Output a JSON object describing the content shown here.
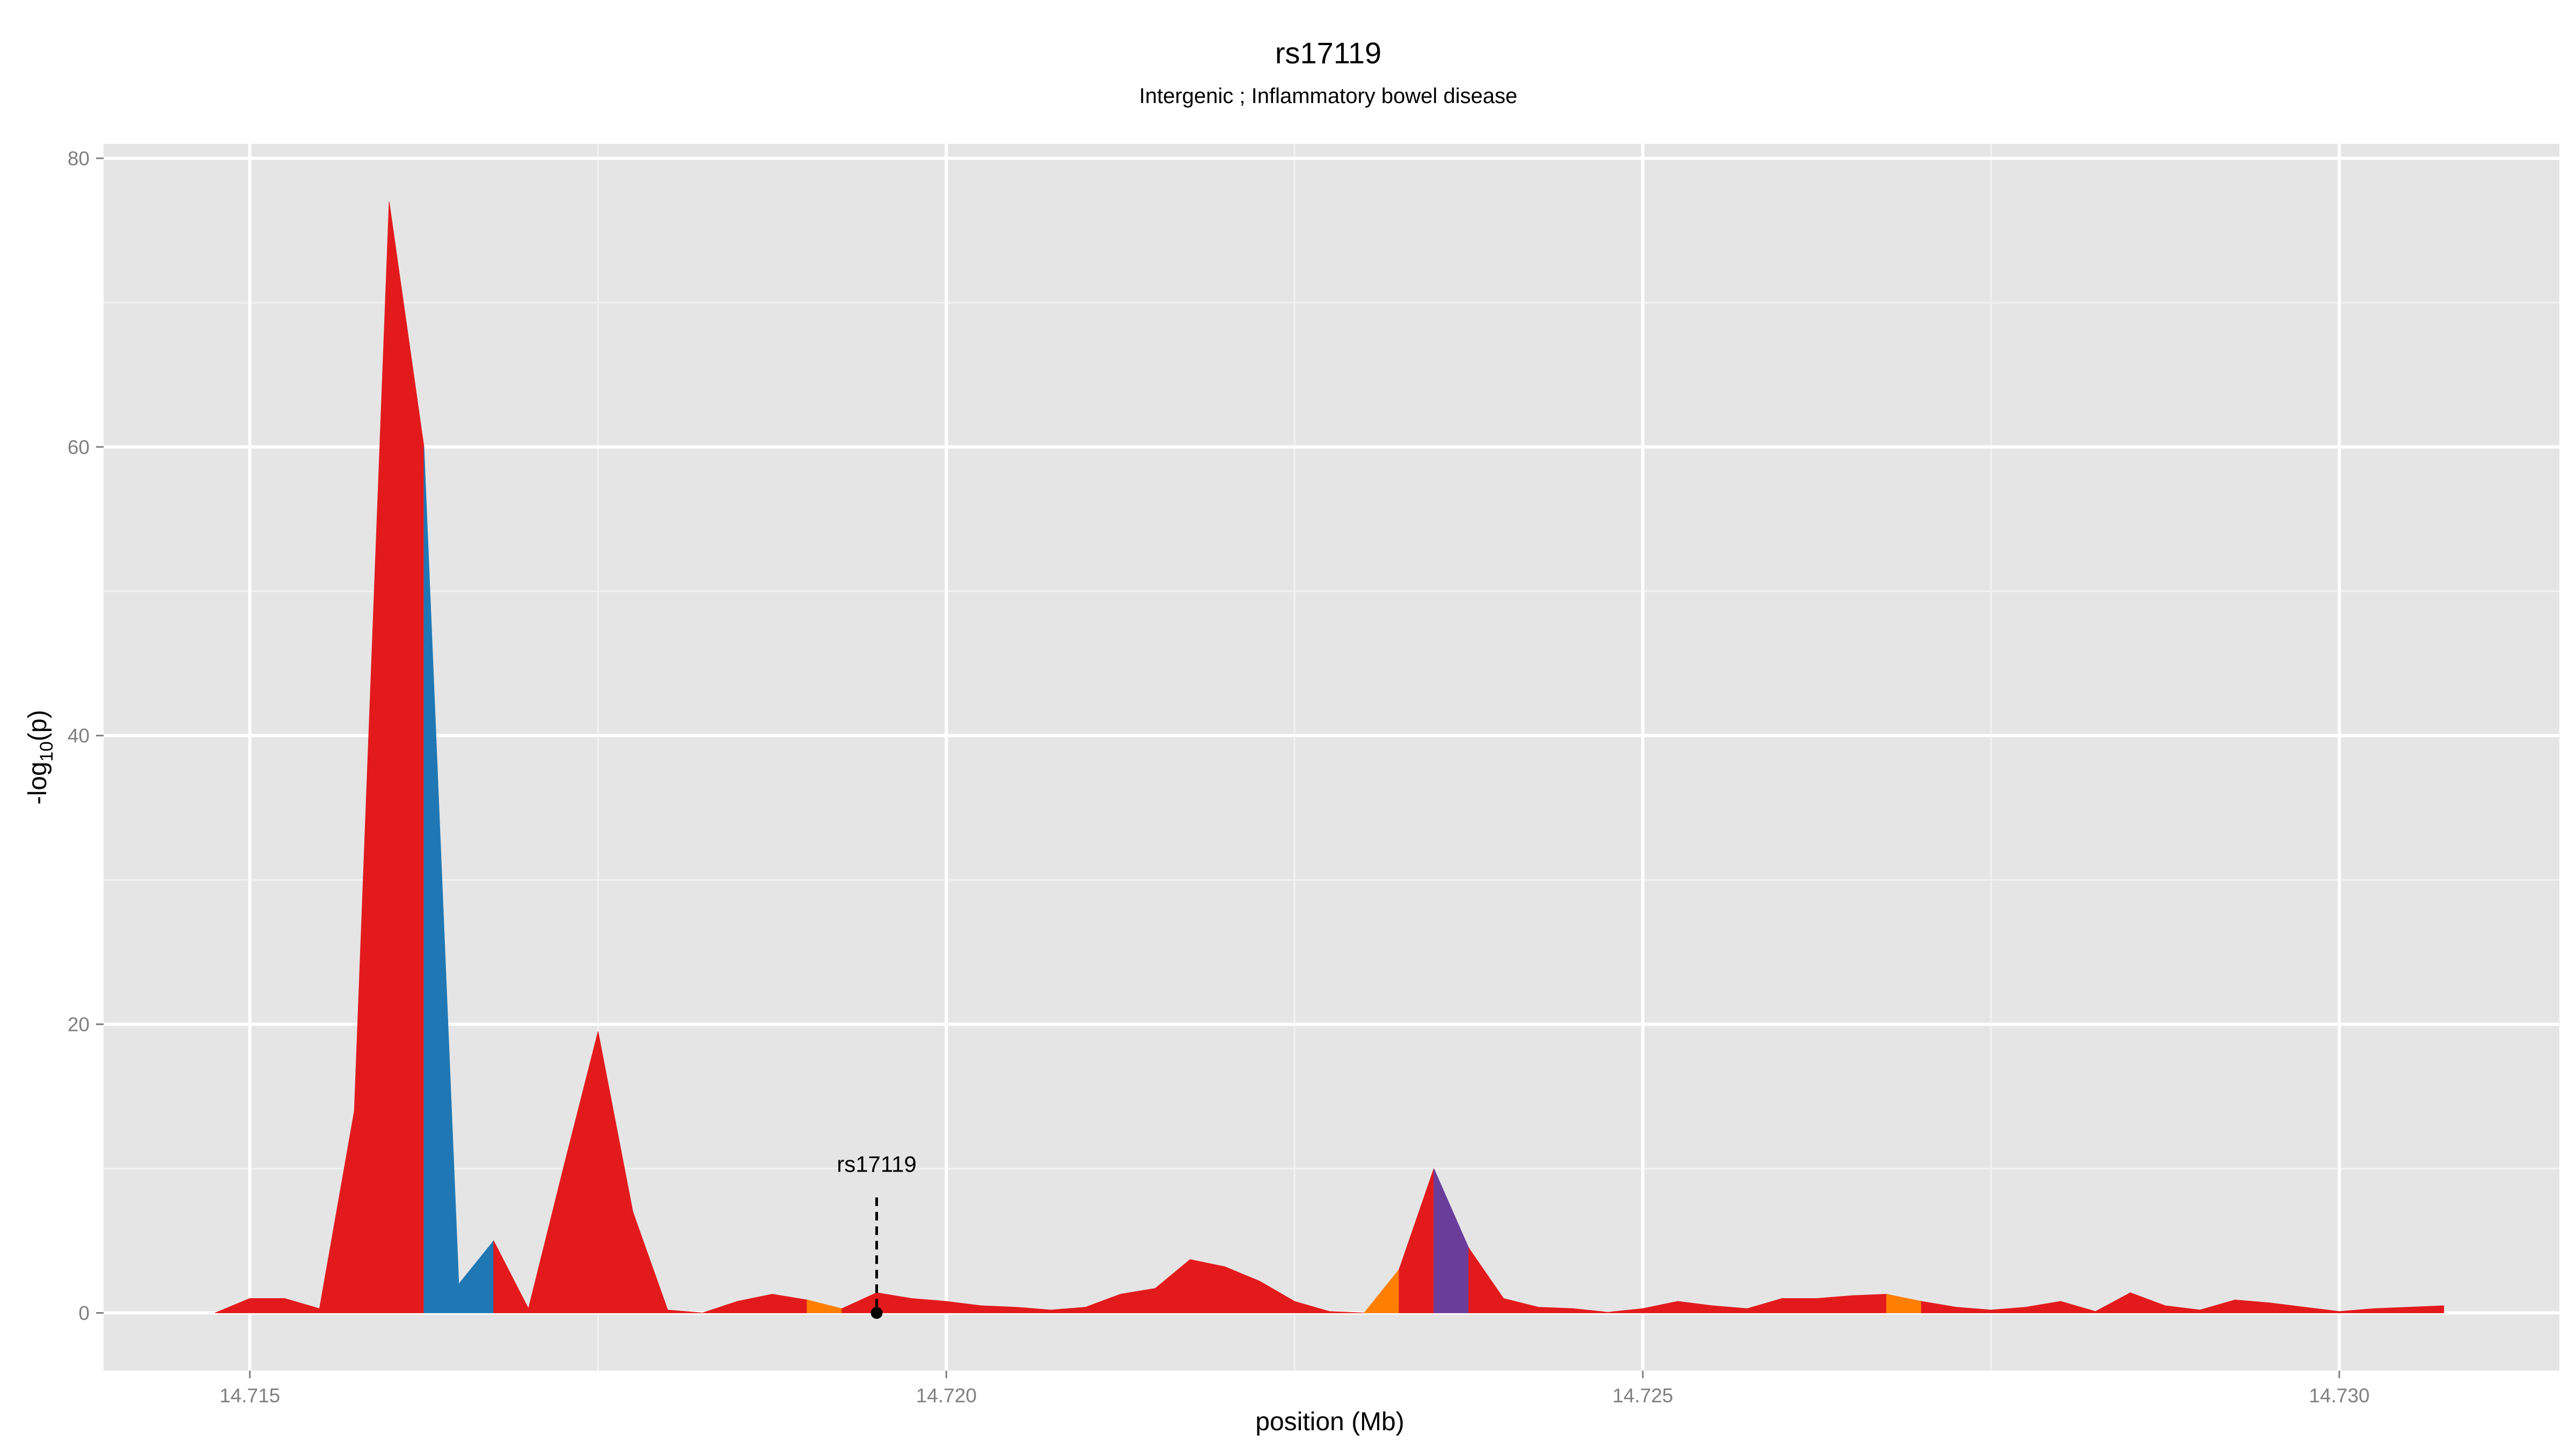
{
  "chart_data": {
    "type": "area",
    "title": "rs17119",
    "subtitle": "Intergenic ; Inflammatory bowel disease",
    "xlabel": "position (Mb)",
    "ylabel": "-log10(p)",
    "xlim": [
      14.71395,
      14.73158
    ],
    "ylim": [
      -4,
      81
    ],
    "x_ticks": [
      14.715,
      14.72,
      14.725,
      14.73
    ],
    "x_tick_labels": [
      "14.715",
      "14.720",
      "14.725",
      "14.730"
    ],
    "y_ticks": [
      0,
      20,
      40,
      60,
      80
    ],
    "y_tick_labels": [
      "0",
      "20",
      "40",
      "60",
      "80"
    ],
    "grid": true,
    "colors": {
      "red": "#e31a1c",
      "blue": "#1f78b4",
      "orange": "#ff7f00",
      "purple": "#6a3d9a",
      "panel": "#e5e5e5",
      "grid_major": "#ffffff",
      "grid_minor": "#f2f2f2"
    },
    "annotation": {
      "label": "rs17119",
      "x": 14.7195,
      "y": 0
    },
    "segments": [
      {
        "color": "red",
        "points": [
          [
            14.71475,
            0
          ],
          [
            14.715,
            1
          ],
          [
            14.71525,
            1
          ],
          [
            14.7155,
            0.3
          ],
          [
            14.71575,
            14
          ],
          [
            14.716,
            77
          ],
          [
            14.71625,
            60
          ]
        ]
      },
      {
        "color": "blue",
        "points": [
          [
            14.71625,
            60
          ],
          [
            14.7165,
            2
          ],
          [
            14.71675,
            5
          ]
        ]
      },
      {
        "color": "red",
        "points": [
          [
            14.71675,
            5
          ],
          [
            14.717,
            0.3
          ],
          [
            14.71725,
            10
          ],
          [
            14.7175,
            19.5
          ],
          [
            14.71775,
            7
          ],
          [
            14.718,
            0.2
          ],
          [
            14.71825,
            0
          ],
          [
            14.7185,
            0.8
          ],
          [
            14.71875,
            1.3
          ],
          [
            14.719,
            0.9
          ]
        ]
      },
      {
        "color": "orange",
        "points": [
          [
            14.719,
            0.9
          ],
          [
            14.71925,
            0.3
          ]
        ]
      },
      {
        "color": "red",
        "points": [
          [
            14.71925,
            0.3
          ],
          [
            14.7195,
            1.4
          ],
          [
            14.71975,
            1.0
          ],
          [
            14.72,
            0.8
          ],
          [
            14.72025,
            0.5
          ],
          [
            14.7205,
            0.4
          ],
          [
            14.72075,
            0.2
          ],
          [
            14.721,
            0.4
          ],
          [
            14.72125,
            1.3
          ],
          [
            14.7215,
            1.7
          ],
          [
            14.72175,
            3.7
          ],
          [
            14.722,
            3.2
          ],
          [
            14.72225,
            2.2
          ],
          [
            14.7225,
            0.8
          ],
          [
            14.72275,
            0.1
          ],
          [
            14.723,
            0
          ]
        ]
      },
      {
        "color": "orange",
        "points": [
          [
            14.723,
            0
          ],
          [
            14.72325,
            3
          ]
        ]
      },
      {
        "color": "red",
        "points": [
          [
            14.72325,
            3
          ],
          [
            14.7235,
            10
          ]
        ]
      },
      {
        "color": "purple",
        "points": [
          [
            14.7235,
            10
          ],
          [
            14.72375,
            4.5
          ]
        ]
      },
      {
        "color": "red",
        "points": [
          [
            14.72375,
            4.5
          ],
          [
            14.724,
            1.0
          ],
          [
            14.72425,
            0.4
          ],
          [
            14.7245,
            0.3
          ],
          [
            14.72475,
            0.05
          ],
          [
            14.725,
            0.3
          ],
          [
            14.72525,
            0.8
          ],
          [
            14.7255,
            0.5
          ],
          [
            14.72575,
            0.3
          ],
          [
            14.726,
            1.0
          ],
          [
            14.72625,
            1.0
          ],
          [
            14.7265,
            1.2
          ],
          [
            14.72675,
            1.3
          ]
        ]
      },
      {
        "color": "orange",
        "points": [
          [
            14.72675,
            1.3
          ],
          [
            14.727,
            0.8
          ]
        ]
      },
      {
        "color": "red",
        "points": [
          [
            14.727,
            0.8
          ],
          [
            14.72725,
            0.4
          ],
          [
            14.7275,
            0.2
          ],
          [
            14.72775,
            0.4
          ],
          [
            14.728,
            0.8
          ],
          [
            14.72825,
            0.1
          ],
          [
            14.7285,
            1.4
          ],
          [
            14.72875,
            0.5
          ],
          [
            14.729,
            0.2
          ],
          [
            14.72925,
            0.9
          ],
          [
            14.7295,
            0.7
          ],
          [
            14.72975,
            0.4
          ],
          [
            14.73,
            0.1
          ],
          [
            14.73025,
            0.3
          ],
          [
            14.7305,
            0.4
          ],
          [
            14.73075,
            0.5
          ],
          [
            14.73075,
            0
          ]
        ]
      }
    ]
  }
}
